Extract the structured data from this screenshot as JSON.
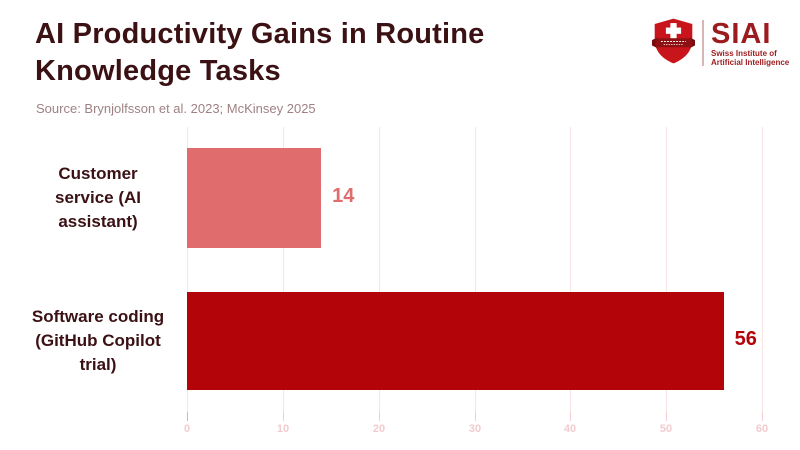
{
  "header": {
    "title_lines": [
      "AI Productivity Gains in Routine",
      "Knowledge Tasks"
    ],
    "source": "Source: Brynjolfsson et al. 2023; McKinsey 2025"
  },
  "logo": {
    "acronym": "SIAI",
    "subtitle_lines": [
      "Swiss Institute of",
      "Artificial Intelligence"
    ]
  },
  "chart_data": {
    "type": "bar",
    "orientation": "horizontal",
    "title": "AI Productivity Gains in Routine Knowledge Tasks",
    "source": "Source: Brynjolfsson et al. 2023; McKinsey 2025",
    "categories": [
      "Customer service (AI assistant)",
      "Software coding (GitHub Copilot trial)"
    ],
    "categories_lines": [
      [
        "Customer",
        "service (AI",
        "assistant)"
      ],
      [
        "Software coding",
        "(GitHub Copilot",
        "trial)"
      ]
    ],
    "values": [
      14,
      56
    ],
    "value_labels": [
      "14",
      "56"
    ],
    "bar_colors": [
      "#E06C6E",
      "#B30409"
    ],
    "value_label_colors": [
      "#E06C6E",
      "#B30409"
    ],
    "x_ticks": [
      0,
      10,
      20,
      30,
      40,
      50,
      60
    ],
    "xlim": [
      0,
      60
    ],
    "grid": true,
    "legend": false
  },
  "colors": {
    "background": "#FFFFFF",
    "title": "#3B1114",
    "source": "#9F8183",
    "gridline": "#F8E6E6",
    "tick_color": "#F2CED2",
    "tick_zero": "#C4BCBC",
    "tick_label": "#F2CBCE",
    "shield_red": "#C8151B",
    "banner_dark_red": "#8E1013",
    "logo_text_red": "#9C1B1E"
  }
}
